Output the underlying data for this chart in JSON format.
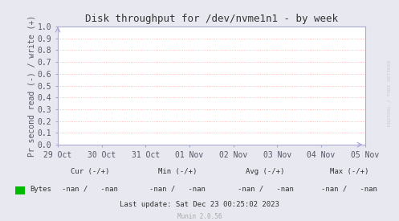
{
  "title": "Disk throughput for /dev/nvme1n1 - by week",
  "ylabel": "Pr second read (-) / write (+)",
  "bg_color": "#e8e8f0",
  "plot_bg_color": "#ffffff",
  "grid_color": "#ffaaaa",
  "border_color": "#aaaacc",
  "title_color": "#333333",
  "yticks": [
    0.0,
    0.1,
    0.2,
    0.3,
    0.4,
    0.5,
    0.6,
    0.7,
    0.8,
    0.9,
    1.0
  ],
  "xtick_labels": [
    "29 Oct",
    "30 Oct",
    "31 Oct",
    "01 Nov",
    "02 Nov",
    "03 Nov",
    "04 Nov",
    "05 Nov"
  ],
  "xtick_positions": [
    0,
    1,
    2,
    3,
    4,
    5,
    6,
    7
  ],
  "legend_label": "Bytes",
  "legend_color": "#00bb00",
  "footer_cur": "Cur (-/+)",
  "footer_min": "Min (-/+)",
  "footer_avg": "Avg (-/+)",
  "footer_max": "Max (-/+)",
  "footer_nan": "-nan /   -nan",
  "footer_last_update": "Last update: Sat Dec 23 00:25:02 2023",
  "footer_munin": "Munin 2.0.56",
  "watermark": "RRDTOOL / TOBI OETIKER",
  "axis_label_color": "#555566",
  "footer_color": "#333333",
  "munin_color": "#aaaaaa",
  "arrow_color": "#aaaadd"
}
